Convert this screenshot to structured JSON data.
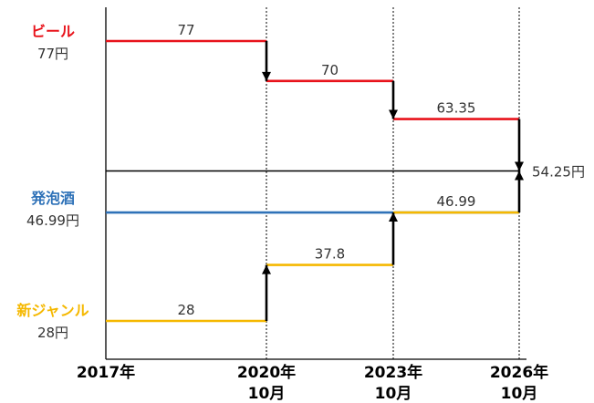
{
  "chart_data": {
    "type": "line",
    "step": true,
    "x_ticks": [
      {
        "line1": "2017年",
        "line2": ""
      },
      {
        "line1": "2020年",
        "line2": "10月"
      },
      {
        "line1": "2023年",
        "line2": "10月"
      },
      {
        "line1": "2026年",
        "line2": "10月"
      }
    ],
    "ylim": [
      20,
      85
    ],
    "series": [
      {
        "name": "ビール",
        "start_label": "77円",
        "color": "#e8131b",
        "values": [
          77,
          70,
          63.35,
          54.25
        ],
        "segment_labels": [
          "77",
          "70",
          "63.35"
        ]
      },
      {
        "name": "発泡酒",
        "start_label": "46.99円",
        "color": "#2f72b8",
        "values": [
          46.99,
          46.99,
          46.99,
          54.25
        ],
        "segment_labels": [
          "",
          "",
          "46.99"
        ]
      },
      {
        "name": "新ジャンル",
        "start_label": "28円",
        "color": "#f5b800",
        "values": [
          28,
          37.8,
          46.99,
          54.25
        ],
        "segment_labels": [
          "28",
          "37.8",
          ""
        ]
      }
    ],
    "target": {
      "value": 54.25,
      "label": "54.25円",
      "color": "#000000"
    }
  }
}
